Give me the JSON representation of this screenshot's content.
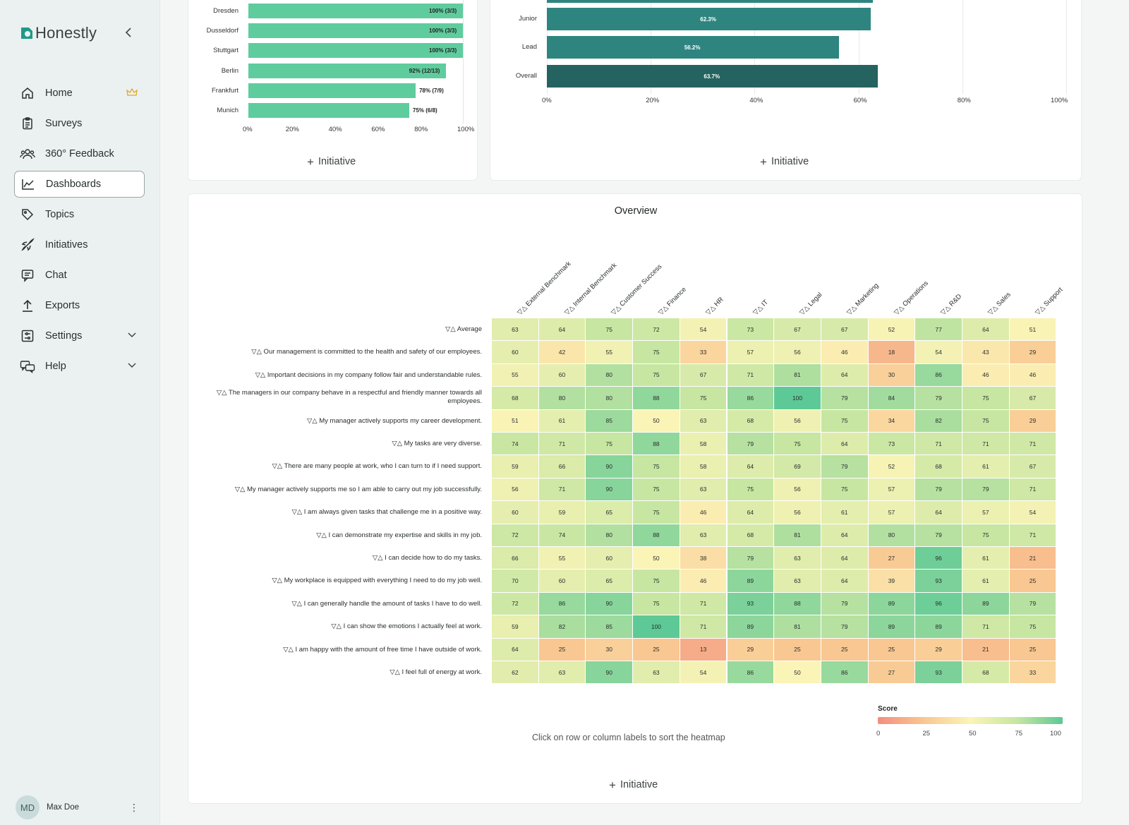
{
  "app": {
    "logo_text": "Honestly",
    "accent": "#1f9a86"
  },
  "nav": [
    {
      "label": "Home",
      "icon": "home-icon",
      "trail": "crown-icon"
    },
    {
      "label": "Surveys",
      "icon": "clipboard-icon"
    },
    {
      "label": "360° Feedback",
      "icon": "users-icon"
    },
    {
      "label": "Dashboards",
      "icon": "chart-line-icon",
      "active": true
    },
    {
      "label": "Topics",
      "icon": "tag-icon"
    },
    {
      "label": "Initiatives",
      "icon": "rocket-icon"
    },
    {
      "label": "Chat",
      "icon": "chat-icon"
    },
    {
      "label": "Exports",
      "icon": "upload-icon"
    },
    {
      "label": "Settings",
      "icon": "settings-icon",
      "trail": "chevron-down-icon"
    },
    {
      "label": "Help",
      "icon": "help-icon",
      "trail": "chevron-down-icon"
    }
  ],
  "user": {
    "initials": "MD",
    "name": "Max Doe"
  },
  "initiative_label": "Initiative",
  "chart_data": [
    {
      "type": "bar",
      "orientation": "horizontal",
      "categories": [
        "Dresden",
        "Dusseldorf",
        "Stuttgart",
        "Berlin",
        "Frankfurt",
        "Munich"
      ],
      "values": [
        100,
        100,
        100,
        92,
        78,
        75
      ],
      "data_labels": [
        "100% (3/3)",
        "100% (3/3)",
        "100% (3/3)",
        "92% (12/13)",
        "78% (7/9)",
        "75% (6/8)"
      ],
      "xticks": [
        "0%",
        "20%",
        "40%",
        "60%",
        "80%",
        "100%"
      ],
      "xlim": [
        0,
        100
      ],
      "color": "#5fcc9e"
    },
    {
      "type": "bar",
      "orientation": "horizontal",
      "categories": [
        "Junior",
        "Lead",
        "Overall"
      ],
      "values": [
        62.3,
        56.2,
        63.7
      ],
      "data_labels": [
        "62.3%",
        "56.2%",
        "63.7%"
      ],
      "xticks": [
        "0%",
        "20%",
        "40%",
        "60%",
        "80%",
        "100%"
      ],
      "xlim": [
        0,
        100
      ],
      "colors": [
        "#2e8580",
        "#2e8580",
        "#24635f"
      ]
    },
    {
      "type": "heatmap",
      "title": "Overview",
      "columns": [
        "▽△ External Benchmark",
        "▽△ Internal Benchmark",
        "▽△ Customer Success",
        "▽△ Finance",
        "▽△ HR",
        "▽△ IT",
        "▽△ Legal",
        "▽△ Marketing",
        "▽△ Operations",
        "▽△ R&D",
        "▽△ Sales",
        "▽△ Support"
      ],
      "rows": [
        "▽△ Average",
        "▽△ Our management is committed to the health and safety of our employees.",
        "▽△ Important decisions in my company follow fair and understandable rules.",
        "▽△ The managers in our company behave in a respectful and friendly manner towards all employees.",
        "▽△ My manager actively supports my career development.",
        "▽△ My tasks are very diverse.",
        "▽△ There are many people at work, who I can turn to if I need support.",
        "▽△ My manager actively supports me so I am able to carry out my job successfully.",
        "▽△ I am always given tasks that challenge me in a positive way.",
        "▽△ I can demonstrate my expertise and skills in my job.",
        "▽△ I can decide how to do my tasks.",
        "▽△ My workplace is equipped with everything I need to do my job well.",
        "▽△ I can generally handle the amount of tasks I have to do well.",
        "▽△ I can show the emotions I actually feel at work.",
        "▽△ I am happy with the amount of free time I have outside of work.",
        "▽△ I feel full of energy at work."
      ],
      "values": [
        [
          63,
          64,
          75,
          72,
          54,
          73,
          67,
          67,
          52,
          77,
          64,
          51
        ],
        [
          60,
          42,
          55,
          75,
          33,
          57,
          56,
          46,
          18,
          54,
          43,
          29
        ],
        [
          55,
          60,
          80,
          75,
          67,
          71,
          81,
          64,
          30,
          86,
          46,
          46
        ],
        [
          68,
          80,
          80,
          88,
          75,
          86,
          100,
          79,
          84,
          79,
          75,
          67
        ],
        [
          51,
          61,
          85,
          50,
          63,
          68,
          56,
          75,
          34,
          82,
          75,
          29
        ],
        [
          74,
          71,
          75,
          88,
          58,
          79,
          75,
          64,
          73,
          71,
          71,
          71
        ],
        [
          59,
          66,
          90,
          75,
          58,
          64,
          69,
          79,
          52,
          68,
          61,
          67
        ],
        [
          56,
          71,
          90,
          75,
          63,
          75,
          56,
          75,
          57,
          79,
          79,
          71
        ],
        [
          60,
          59,
          65,
          75,
          46,
          64,
          56,
          61,
          57,
          64,
          57,
          54
        ],
        [
          72,
          74,
          80,
          88,
          63,
          68,
          81,
          64,
          80,
          79,
          75,
          71
        ],
        [
          66,
          55,
          60,
          50,
          38,
          79,
          63,
          64,
          27,
          96,
          61,
          21
        ],
        [
          70,
          60,
          65,
          75,
          46,
          89,
          63,
          64,
          39,
          93,
          61,
          25
        ],
        [
          72,
          86,
          90,
          75,
          71,
          93,
          88,
          79,
          89,
          96,
          89,
          79
        ],
        [
          59,
          82,
          85,
          100,
          71,
          89,
          81,
          79,
          89,
          89,
          71,
          75
        ],
        [
          64,
          25,
          30,
          25,
          13,
          29,
          25,
          25,
          25,
          29,
          21,
          25
        ],
        [
          62,
          63,
          90,
          63,
          54,
          86,
          50,
          86,
          27,
          93,
          68,
          33
        ]
      ],
      "hint": "Click on row or column labels to sort the heatmap",
      "legend": {
        "title": "Score",
        "ticks": [
          "0",
          "25",
          "50",
          "75",
          "100"
        ]
      }
    }
  ]
}
